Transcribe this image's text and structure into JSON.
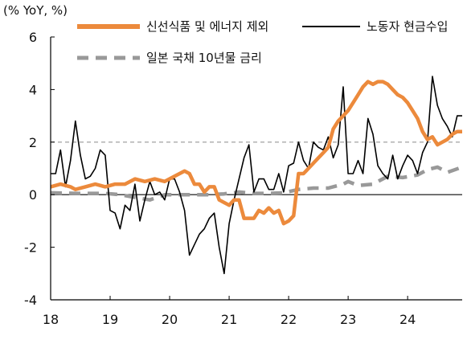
{
  "chart_data": {
    "type": "line",
    "unit_label": "(% YoY, %)",
    "xlabel": "",
    "ylabel": "",
    "x_start": "2018-01",
    "x_end": "2024-12",
    "ylim": [
      -4,
      6
    ],
    "yticks": [
      -4,
      -2,
      0,
      2,
      4,
      6
    ],
    "xticks": [
      {
        "label": "18",
        "x": "2018-01"
      },
      {
        "label": "19",
        "x": "2019-01"
      },
      {
        "label": "20",
        "x": "2020-01"
      },
      {
        "label": "21",
        "x": "2021-01"
      },
      {
        "label": "22",
        "x": "2022-01"
      },
      {
        "label": "23",
        "x": "2023-01"
      },
      {
        "label": "24",
        "x": "2024-01"
      }
    ],
    "reference_lines": [
      {
        "y": 2,
        "style": "dashed",
        "color": "#aaaaaa"
      },
      {
        "y": 0,
        "style": "solid",
        "color": "#333333"
      }
    ],
    "series": [
      {
        "name": "신선식품 및 에너지 제외",
        "color": "#ec8a3c",
        "style": "solid-thick",
        "points": [
          [
            "2018-01",
            0.3
          ],
          [
            "2018-03",
            0.4
          ],
          [
            "2018-05",
            0.3
          ],
          [
            "2018-06",
            0.2
          ],
          [
            "2018-08",
            0.3
          ],
          [
            "2018-10",
            0.4
          ],
          [
            "2018-12",
            0.3
          ],
          [
            "2019-02",
            0.4
          ],
          [
            "2019-04",
            0.4
          ],
          [
            "2019-06",
            0.6
          ],
          [
            "2019-08",
            0.5
          ],
          [
            "2019-10",
            0.6
          ],
          [
            "2019-12",
            0.5
          ],
          [
            "2020-02",
            0.7
          ],
          [
            "2020-04",
            0.9
          ],
          [
            "2020-05",
            0.8
          ],
          [
            "2020-06",
            0.4
          ],
          [
            "2020-07",
            0.4
          ],
          [
            "2020-08",
            0.1
          ],
          [
            "2020-09",
            0.3
          ],
          [
            "2020-10",
            0.3
          ],
          [
            "2020-11",
            -0.2
          ],
          [
            "2020-12",
            -0.3
          ],
          [
            "2021-01",
            -0.4
          ],
          [
            "2021-02",
            -0.2
          ],
          [
            "2021-03",
            -0.2
          ],
          [
            "2021-04",
            -0.9
          ],
          [
            "2021-05",
            -0.9
          ],
          [
            "2021-06",
            -0.9
          ],
          [
            "2021-07",
            -0.6
          ],
          [
            "2021-08",
            -0.7
          ],
          [
            "2021-09",
            -0.5
          ],
          [
            "2021-10",
            -0.7
          ],
          [
            "2021-11",
            -0.6
          ],
          [
            "2021-12",
            -1.1
          ],
          [
            "2022-01",
            -1.0
          ],
          [
            "2022-02",
            -0.8
          ],
          [
            "2022-03",
            0.8
          ],
          [
            "2022-04",
            0.8
          ],
          [
            "2022-05",
            1.0
          ],
          [
            "2022-06",
            1.2
          ],
          [
            "2022-07",
            1.4
          ],
          [
            "2022-08",
            1.6
          ],
          [
            "2022-09",
            1.8
          ],
          [
            "2022-10",
            2.5
          ],
          [
            "2022-11",
            2.8
          ],
          [
            "2022-12",
            3.0
          ],
          [
            "2023-01",
            3.2
          ],
          [
            "2023-02",
            3.5
          ],
          [
            "2023-03",
            3.8
          ],
          [
            "2023-04",
            4.1
          ],
          [
            "2023-05",
            4.3
          ],
          [
            "2023-06",
            4.2
          ],
          [
            "2023-07",
            4.3
          ],
          [
            "2023-08",
            4.3
          ],
          [
            "2023-09",
            4.2
          ],
          [
            "2023-10",
            4.0
          ],
          [
            "2023-11",
            3.8
          ],
          [
            "2023-12",
            3.7
          ],
          [
            "2024-01",
            3.5
          ],
          [
            "2024-02",
            3.2
          ],
          [
            "2024-03",
            2.9
          ],
          [
            "2024-04",
            2.4
          ],
          [
            "2024-05",
            2.1
          ],
          [
            "2024-06",
            2.2
          ],
          [
            "2024-07",
            1.9
          ],
          [
            "2024-08",
            2.0
          ],
          [
            "2024-09",
            2.1
          ],
          [
            "2024-10",
            2.3
          ],
          [
            "2024-11",
            2.4
          ],
          [
            "2024-12",
            2.4
          ]
        ]
      },
      {
        "name": "노동자 현금수입",
        "color": "#000000",
        "style": "solid-thin",
        "points": [
          [
            "2018-01",
            0.8
          ],
          [
            "2018-02",
            0.8
          ],
          [
            "2018-03",
            1.7
          ],
          [
            "2018-04",
            0.3
          ],
          [
            "2018-05",
            1.3
          ],
          [
            "2018-06",
            2.8
          ],
          [
            "2018-07",
            1.5
          ],
          [
            "2018-08",
            0.6
          ],
          [
            "2018-09",
            0.7
          ],
          [
            "2018-10",
            1.0
          ],
          [
            "2018-11",
            1.7
          ],
          [
            "2018-12",
            1.5
          ],
          [
            "2019-01",
            -0.6
          ],
          [
            "2019-02",
            -0.7
          ],
          [
            "2019-03",
            -1.3
          ],
          [
            "2019-04",
            -0.4
          ],
          [
            "2019-05",
            -0.6
          ],
          [
            "2019-06",
            0.4
          ],
          [
            "2019-07",
            -1.0
          ],
          [
            "2019-08",
            -0.2
          ],
          [
            "2019-09",
            0.5
          ],
          [
            "2019-10",
            0.0
          ],
          [
            "2019-11",
            0.1
          ],
          [
            "2019-12",
            -0.2
          ],
          [
            "2020-01",
            0.6
          ],
          [
            "2020-02",
            0.6
          ],
          [
            "2020-03",
            0.1
          ],
          [
            "2020-04",
            -0.6
          ],
          [
            "2020-05",
            -2.3
          ],
          [
            "2020-06",
            -1.9
          ],
          [
            "2020-07",
            -1.5
          ],
          [
            "2020-08",
            -1.3
          ],
          [
            "2020-09",
            -0.9
          ],
          [
            "2020-10",
            -0.7
          ],
          [
            "2020-11",
            -2.0
          ],
          [
            "2020-12",
            -3.0
          ],
          [
            "2021-01",
            -1.1
          ],
          [
            "2021-02",
            -0.2
          ],
          [
            "2021-03",
            0.6
          ],
          [
            "2021-04",
            1.4
          ],
          [
            "2021-05",
            1.9
          ],
          [
            "2021-06",
            0.1
          ],
          [
            "2021-07",
            0.6
          ],
          [
            "2021-08",
            0.6
          ],
          [
            "2021-09",
            0.2
          ],
          [
            "2021-10",
            0.2
          ],
          [
            "2021-11",
            0.8
          ],
          [
            "2021-12",
            0.1
          ],
          [
            "2022-01",
            1.1
          ],
          [
            "2022-02",
            1.2
          ],
          [
            "2022-03",
            2.0
          ],
          [
            "2022-04",
            1.3
          ],
          [
            "2022-05",
            1.0
          ],
          [
            "2022-06",
            2.0
          ],
          [
            "2022-07",
            1.8
          ],
          [
            "2022-08",
            1.7
          ],
          [
            "2022-09",
            2.2
          ],
          [
            "2022-10",
            1.4
          ],
          [
            "2022-11",
            1.9
          ],
          [
            "2022-12",
            4.1
          ],
          [
            "2023-01",
            0.8
          ],
          [
            "2023-02",
            0.8
          ],
          [
            "2023-03",
            1.3
          ],
          [
            "2023-04",
            0.8
          ],
          [
            "2023-05",
            2.9
          ],
          [
            "2023-06",
            2.3
          ],
          [
            "2023-07",
            1.1
          ],
          [
            "2023-08",
            0.8
          ],
          [
            "2023-09",
            0.6
          ],
          [
            "2023-10",
            1.5
          ],
          [
            "2023-11",
            0.6
          ],
          [
            "2023-12",
            1.1
          ],
          [
            "2024-01",
            1.5
          ],
          [
            "2024-02",
            1.3
          ],
          [
            "2024-03",
            0.8
          ],
          [
            "2024-04",
            1.6
          ],
          [
            "2024-05",
            2.0
          ],
          [
            "2024-06",
            4.5
          ],
          [
            "2024-07",
            3.4
          ],
          [
            "2024-08",
            2.9
          ],
          [
            "2024-09",
            2.6
          ],
          [
            "2024-10",
            2.2
          ],
          [
            "2024-11",
            3.0
          ],
          [
            "2024-12",
            3.0
          ]
        ]
      },
      {
        "name": "일본 국채 10년물 금리",
        "color": "#999999",
        "style": "dashed-thick",
        "points": [
          [
            "2018-01",
            0.07
          ],
          [
            "2018-06",
            0.05
          ],
          [
            "2018-12",
            0.05
          ],
          [
            "2019-03",
            0.0
          ],
          [
            "2019-06",
            -0.1
          ],
          [
            "2019-09",
            -0.2
          ],
          [
            "2019-12",
            0.0
          ],
          [
            "2020-03",
            0.0
          ],
          [
            "2020-06",
            0.0
          ],
          [
            "2020-09",
            0.0
          ],
          [
            "2020-12",
            0.03
          ],
          [
            "2021-03",
            0.1
          ],
          [
            "2021-06",
            0.05
          ],
          [
            "2021-09",
            0.05
          ],
          [
            "2021-12",
            0.07
          ],
          [
            "2022-03",
            0.2
          ],
          [
            "2022-06",
            0.25
          ],
          [
            "2022-09",
            0.25
          ],
          [
            "2022-12",
            0.4
          ],
          [
            "2023-01",
            0.5
          ],
          [
            "2023-03",
            0.35
          ],
          [
            "2023-06",
            0.4
          ],
          [
            "2023-09",
            0.7
          ],
          [
            "2023-12",
            0.65
          ],
          [
            "2024-03",
            0.75
          ],
          [
            "2024-05",
            0.95
          ],
          [
            "2024-07",
            1.05
          ],
          [
            "2024-09",
            0.85
          ],
          [
            "2024-12",
            1.05
          ]
        ]
      }
    ]
  }
}
